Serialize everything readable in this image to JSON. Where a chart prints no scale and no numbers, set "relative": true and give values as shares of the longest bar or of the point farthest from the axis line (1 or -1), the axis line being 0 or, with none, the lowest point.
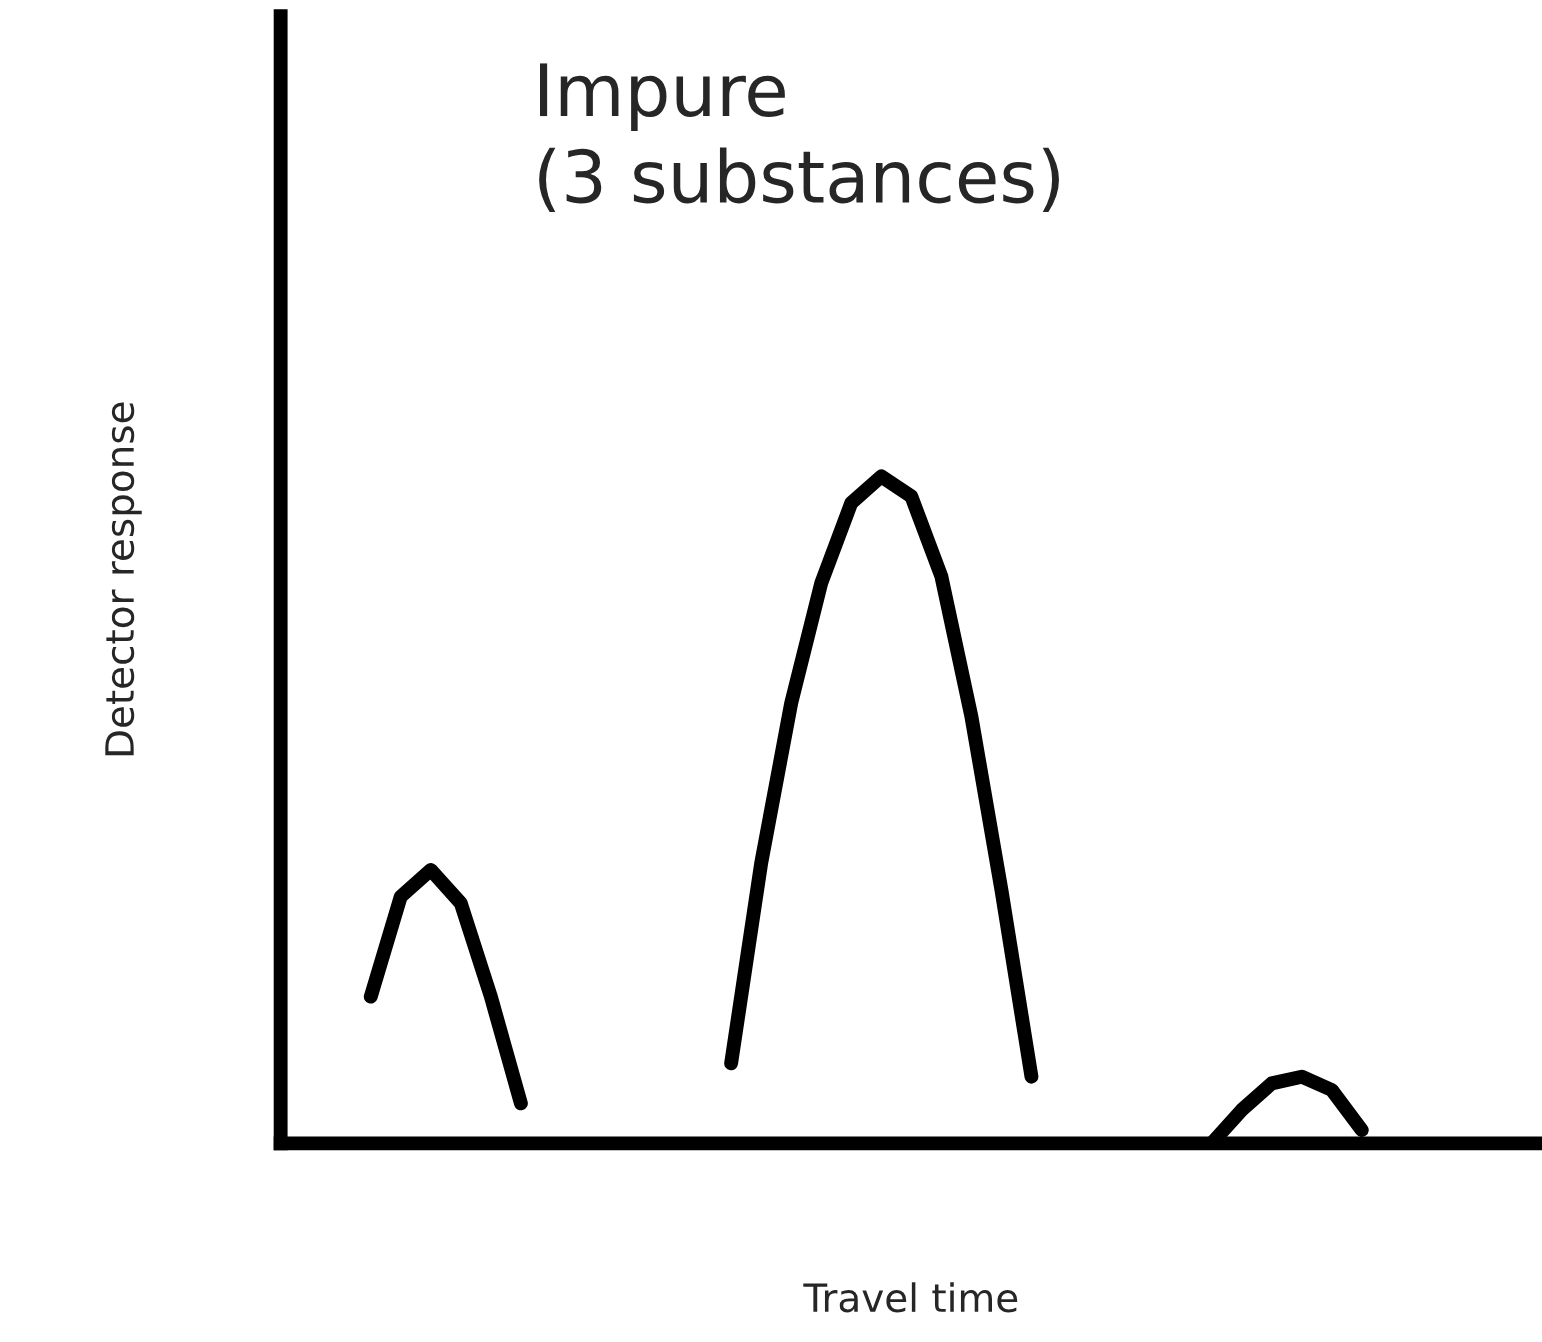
{
  "chart_data": {
    "type": "line",
    "relative": true,
    "xlabel": "Travel time",
    "ylabel": "Detector response",
    "annotations": [
      "Impure\n(3 substances)"
    ],
    "categories": [
      null,
      null,
      null,
      null,
      null,
      null,
      null,
      null,
      null,
      null,
      null,
      null,
      null,
      null,
      null,
      null,
      null,
      null,
      null,
      null,
      null,
      null,
      null,
      null,
      null,
      null,
      null,
      null,
      null,
      null,
      null,
      null,
      null,
      null,
      null,
      null,
      null,
      null,
      null,
      null,
      null,
      null,
      null
    ],
    "series": [
      {
        "color": "#000000",
        "values": [
          null,
          null,
          null,
          0.22,
          0.37,
          0.41,
          0.36,
          0.22,
          0.06,
          null,
          null,
          null,
          null,
          null,
          null,
          null,
          null,
          null,
          null,
          null,
          null,
          null,
          null,
          null,
          null,
          null,
          null,
          null,
          null,
          null,
          null,
          null,
          null,
          null,
          null,
          null,
          null,
          null,
          null,
          null,
          null,
          null,
          null
        ]
      },
      {
        "color": "#000000",
        "values": [
          null,
          null,
          null,
          null,
          null,
          null,
          null,
          null,
          null,
          null,
          null,
          null,
          null,
          null,
          null,
          0.12,
          0.42,
          0.66,
          0.84,
          0.96,
          1.0,
          0.97,
          0.85,
          0.64,
          0.38,
          0.1,
          null,
          null,
          null,
          null,
          null,
          null,
          null,
          null,
          null,
          null,
          null,
          null,
          null,
          null,
          null,
          null,
          null
        ]
      },
      {
        "color": "#000000",
        "values": [
          null,
          null,
          null,
          null,
          null,
          null,
          null,
          null,
          null,
          null,
          null,
          null,
          null,
          null,
          null,
          null,
          null,
          null,
          null,
          null,
          null,
          null,
          null,
          null,
          null,
          null,
          null,
          null,
          null,
          null,
          null,
          0.0,
          0.05,
          0.09,
          0.1,
          0.08,
          0.02,
          null,
          null,
          null,
          null,
          null,
          null
        ]
      }
    ],
    "marker": "none",
    "line_style": "solid",
    "tick_labels": false
  }
}
